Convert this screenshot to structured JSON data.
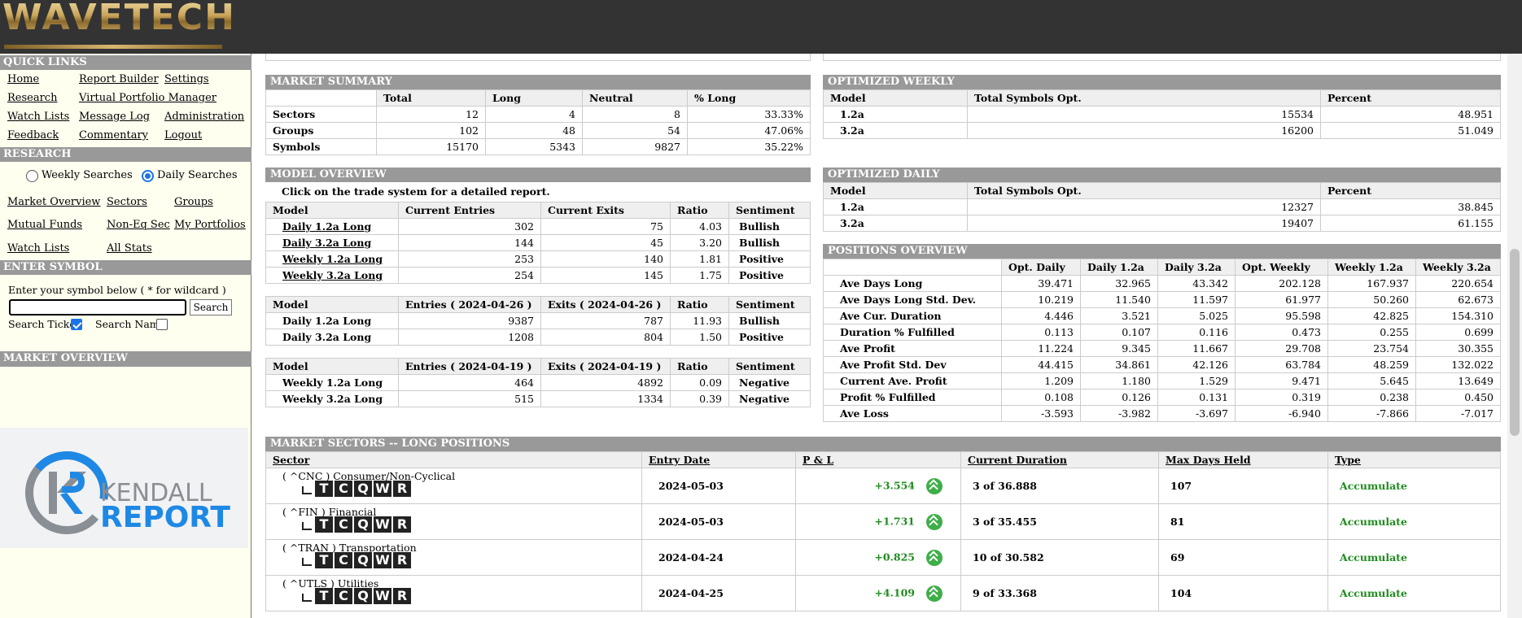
{
  "brand": {
    "logo": "WAVETECH",
    "sponsor_line1": "KENDALL",
    "sponsor_line2": "REPORT"
  },
  "sidebar": {
    "quick_links_title": "QUICK LINKS",
    "quick_links": [
      "Home",
      "Report Builder",
      "Settings",
      "Research",
      "Virtual Portfolio Manager",
      "Watch Lists",
      "Message Log",
      "Administration",
      "Feedback",
      "Commentary",
      "Logout"
    ],
    "research_title": "RESEARCH",
    "radio_weekly": "Weekly Searches",
    "radio_daily": "Daily Searches",
    "selected_search": "Daily Searches",
    "research_links": [
      "Market Overview",
      "Sectors",
      "Groups",
      "Mutual Funds",
      "Non-Eq Sec",
      "My Portfolios",
      "Watch Lists",
      "All Stats"
    ],
    "symbol_title": "ENTER SYMBOL",
    "symbol_prompt": "Enter your symbol below ( * for wildcard )",
    "symbol_value": "",
    "search_button": "Search",
    "search_ticker_label": "Search Ticker",
    "search_ticker_checked": true,
    "search_name_label": "Search Name",
    "search_name_checked": false,
    "market_overview_title": "MARKET OVERVIEW"
  },
  "market_summary": {
    "title": "MARKET SUMMARY",
    "headers": [
      "",
      "Total",
      "Long",
      "Neutral",
      "% Long"
    ],
    "rows": [
      [
        "Sectors",
        "12",
        "4",
        "8",
        "33.33%"
      ],
      [
        "Groups",
        "102",
        "48",
        "54",
        "47.06%"
      ],
      [
        "Symbols",
        "15170",
        "5343",
        "9827",
        "35.22%"
      ]
    ]
  },
  "optimized_weekly": {
    "title": "OPTIMIZED WEEKLY",
    "headers": [
      "Model",
      "Total Symbols Opt.",
      "Percent"
    ],
    "rows": [
      [
        "1.2a",
        "15534",
        "48.951"
      ],
      [
        "3.2a",
        "16200",
        "51.049"
      ]
    ]
  },
  "model_overview": {
    "title": "MODEL OVERVIEW",
    "note": "Click on the trade system for a detailed report.",
    "t1_headers": [
      "Model",
      "Current Entries",
      "Current Exits",
      "Ratio",
      "Sentiment"
    ],
    "t1_rows": [
      [
        "Daily 1.2a Long",
        "302",
        "75",
        "4.03",
        "Bullish"
      ],
      [
        "Daily 3.2a Long",
        "144",
        "45",
        "3.20",
        "Bullish"
      ],
      [
        "Weekly 1.2a Long",
        "253",
        "140",
        "1.81",
        "Positive"
      ],
      [
        "Weekly 3.2a Long",
        "254",
        "145",
        "1.75",
        "Positive"
      ]
    ],
    "t2_headers": [
      "Model",
      "Entries ( 2024-04-26 )",
      "Exits ( 2024-04-26 )",
      "Ratio",
      "Sentiment"
    ],
    "t2_rows": [
      [
        "Daily 1.2a Long",
        "9387",
        "787",
        "11.93",
        "Bullish"
      ],
      [
        "Daily 3.2a Long",
        "1208",
        "804",
        "1.50",
        "Positive"
      ]
    ],
    "t3_headers": [
      "Model",
      "Entries ( 2024-04-19 )",
      "Exits ( 2024-04-19 )",
      "Ratio",
      "Sentiment"
    ],
    "t3_rows": [
      [
        "Weekly 1.2a Long",
        "464",
        "4892",
        "0.09",
        "Negative"
      ],
      [
        "Weekly 3.2a Long",
        "515",
        "1334",
        "0.39",
        "Negative"
      ]
    ]
  },
  "optimized_daily": {
    "title": "OPTIMIZED DAILY",
    "headers": [
      "Model",
      "Total Symbols Opt.",
      "Percent"
    ],
    "rows": [
      [
        "1.2a",
        "12327",
        "38.845"
      ],
      [
        "3.2a",
        "19407",
        "61.155"
      ]
    ]
  },
  "positions_overview": {
    "title": "POSITIONS OVERVIEW",
    "headers": [
      "",
      "Opt. Daily",
      "Daily 1.2a",
      "Daily 3.2a",
      "Opt. Weekly",
      "Weekly 1.2a",
      "Weekly 3.2a"
    ],
    "rows": [
      [
        "Ave Days Long",
        "39.471",
        "32.965",
        "43.342",
        "202.128",
        "167.937",
        "220.654"
      ],
      [
        "Ave Days Long Std. Dev.",
        "10.219",
        "11.540",
        "11.597",
        "61.977",
        "50.260",
        "62.673"
      ],
      [
        "Ave Cur. Duration",
        "4.446",
        "3.521",
        "5.025",
        "95.598",
        "42.825",
        "154.310"
      ],
      [
        "Duration % Fulfilled",
        "0.113",
        "0.107",
        "0.116",
        "0.473",
        "0.255",
        "0.699"
      ],
      [
        "Ave Profit",
        "11.224",
        "9.345",
        "11.667",
        "29.708",
        "23.754",
        "30.355"
      ],
      [
        "Ave Profit Std. Dev",
        "44.415",
        "34.861",
        "42.126",
        "63.784",
        "48.259",
        "132.022"
      ],
      [
        "Current Ave. Profit",
        "1.209",
        "1.180",
        "1.529",
        "9.471",
        "5.645",
        "13.649"
      ],
      [
        "Profit % Fulfilled",
        "0.108",
        "0.126",
        "0.131",
        "0.319",
        "0.238",
        "0.450"
      ],
      [
        "Ave Loss",
        "-3.593",
        "-3.982",
        "-3.697",
        "-6.940",
        "-7.866",
        "-7.017"
      ]
    ]
  },
  "market_sectors": {
    "title": "MARKET SECTORS -- LONG POSITIONS",
    "headers": [
      "Sector",
      "Entry Date",
      "P & L",
      "Current Duration",
      "Max Days Held",
      "Type"
    ],
    "badges": [
      "T",
      "C",
      "Q",
      "W",
      "R"
    ],
    "rows": [
      {
        "sector": "( ^CNC ) Consumer/Non-Cyclical",
        "entry": "2024-05-03",
        "pl": "+3.554",
        "duration": "3 of 36.888",
        "max": "107",
        "type": "Accumulate"
      },
      {
        "sector": "( ^FIN ) Financial",
        "entry": "2024-05-03",
        "pl": "+1.731",
        "duration": "3 of 35.455",
        "max": "81",
        "type": "Accumulate"
      },
      {
        "sector": "( ^TRAN ) Transportation",
        "entry": "2024-04-24",
        "pl": "+0.825",
        "duration": "10 of 30.582",
        "max": "69",
        "type": "Accumulate"
      },
      {
        "sector": "( ^UTLS ) Utilities",
        "entry": "2024-04-25",
        "pl": "+4.109",
        "duration": "9 of 33.368",
        "max": "104",
        "type": "Accumulate"
      }
    ]
  }
}
